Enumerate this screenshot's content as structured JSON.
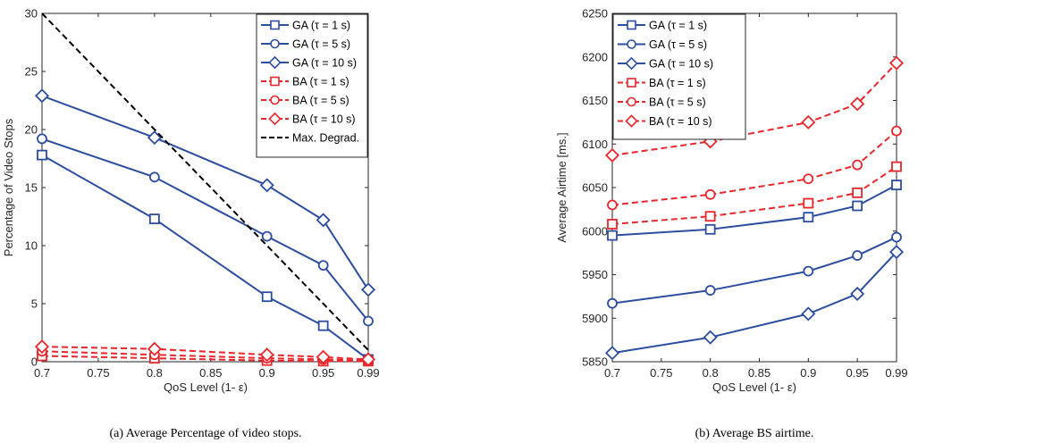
{
  "chart_data": [
    {
      "type": "line",
      "caption": "(a) Average Percentage of video stops.",
      "xlabel": "QoS Level (1- ε)",
      "ylabel": "Percentage of Video Stops",
      "categories": [
        "0.7",
        "0.75",
        "0.8",
        "0.85",
        "0.9",
        "0.95",
        "0.99"
      ],
      "x": [
        0.7,
        0.8,
        0.9,
        0.95,
        0.99
      ],
      "xlim": [
        0.7,
        0.99
      ],
      "ylim": [
        0,
        30
      ],
      "yticks": [
        0,
        5,
        10,
        15,
        20,
        25,
        30
      ],
      "grid": false,
      "legend_position": "top-right",
      "series": [
        {
          "name": "GA (τ = 1 s)",
          "color": "#2c4da0",
          "marker": "square",
          "dash": "solid",
          "values": [
            17.8,
            12.3,
            5.6,
            3.1,
            0.2
          ]
        },
        {
          "name": "GA (τ = 5 s)",
          "color": "#2c4da0",
          "marker": "circle",
          "dash": "solid",
          "values": [
            19.2,
            15.9,
            10.8,
            8.3,
            3.5
          ]
        },
        {
          "name": "GA (τ = 10 s)",
          "color": "#2c4da0",
          "marker": "diamond",
          "dash": "solid",
          "values": [
            22.9,
            19.3,
            15.2,
            12.2,
            6.2
          ]
        },
        {
          "name": "BA (τ = 1 s)",
          "color": "#e8262b",
          "marker": "square",
          "dash": "dashed",
          "values": [
            0.5,
            0.3,
            0.1,
            0.05,
            0.05
          ]
        },
        {
          "name": "BA (τ = 5 s)",
          "color": "#e8262b",
          "marker": "circle",
          "dash": "dashed",
          "values": [
            0.9,
            0.6,
            0.3,
            0.2,
            0.1
          ]
        },
        {
          "name": "BA (τ = 10 s)",
          "color": "#e8262b",
          "marker": "diamond",
          "dash": "dashed",
          "values": [
            1.3,
            1.1,
            0.6,
            0.4,
            0.2
          ]
        },
        {
          "name": "Max. Degrad.",
          "color": "#000000",
          "marker": "none",
          "dash": "dashed",
          "values": [
            30,
            20,
            10,
            5,
            1
          ]
        }
      ]
    },
    {
      "type": "line",
      "caption": "(b) Average BS airtime.",
      "xlabel": "QoS Level (1- ε)",
      "ylabel": "Average Airtime [ms.]",
      "categories": [
        "0.7",
        "0.75",
        "0.8",
        "0.85",
        "0.9",
        "0.95",
        "0.99"
      ],
      "x": [
        0.7,
        0.8,
        0.9,
        0.95,
        0.99
      ],
      "xlim": [
        0.7,
        0.99
      ],
      "ylim": [
        5850,
        6250
      ],
      "yticks": [
        5850,
        5900,
        5950,
        6000,
        6050,
        6100,
        6150,
        6200,
        6250
      ],
      "grid": false,
      "legend_position": "top-left",
      "series": [
        {
          "name": "GA (τ = 1 s)",
          "color": "#2c4da0",
          "marker": "square",
          "dash": "solid",
          "values": [
            5995,
            6002,
            6016,
            6029,
            6053
          ]
        },
        {
          "name": "GA (τ = 5 s)",
          "color": "#2c4da0",
          "marker": "circle",
          "dash": "solid",
          "values": [
            5917,
            5932,
            5954,
            5972,
            5993
          ]
        },
        {
          "name": "GA (τ = 10 s)",
          "color": "#2c4da0",
          "marker": "diamond",
          "dash": "solid",
          "values": [
            5860,
            5878,
            5905,
            5928,
            5976
          ]
        },
        {
          "name": "BA (τ = 1 s)",
          "color": "#e8262b",
          "marker": "square",
          "dash": "dashed",
          "values": [
            6008,
            6017,
            6032,
            6044,
            6074
          ]
        },
        {
          "name": "BA (τ = 5 s)",
          "color": "#e8262b",
          "marker": "circle",
          "dash": "dashed",
          "values": [
            6030,
            6042,
            6060,
            6076,
            6115
          ]
        },
        {
          "name": "BA (τ = 10 s)",
          "color": "#e8262b",
          "marker": "diamond",
          "dash": "dashed",
          "values": [
            6087,
            6103,
            6125,
            6146,
            6193
          ]
        }
      ]
    }
  ]
}
